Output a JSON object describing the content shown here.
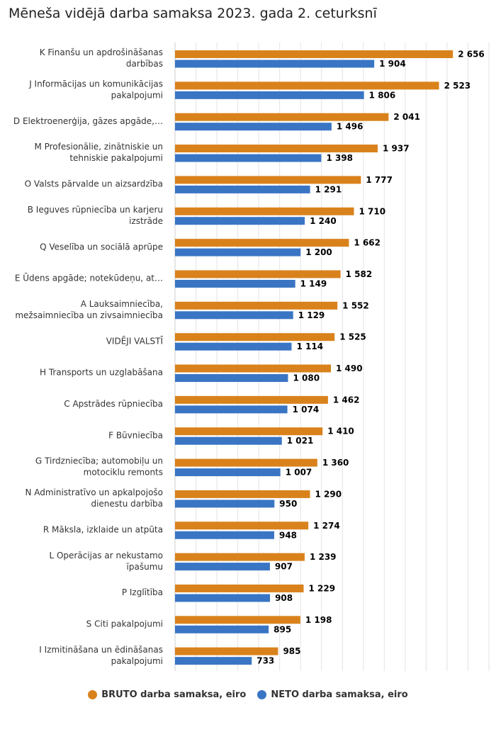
{
  "chart_data": {
    "type": "bar",
    "orientation": "horizontal",
    "title": "Mēneša vidējā darba samaksa 2023. gada 2. ceturksnī",
    "categories": [
      [
        "K Finanšu un apdrošināšanas",
        "darbības"
      ],
      [
        "J Informācijas un komunikācijas",
        "pakalpojumi"
      ],
      [
        "D Elektroenerģija, gāzes apgāde,…"
      ],
      [
        "M Profesionālie, zinātniskie un",
        "tehniskie pakalpojumi"
      ],
      [
        "O Valsts pārvalde un aizsardzība"
      ],
      [
        "B Ieguves rūpniecība un karjeru",
        "izstrāde"
      ],
      [
        "Q Veselība un sociālā aprūpe"
      ],
      [
        "E Ūdens apgāde; notekūdeņu, at…"
      ],
      [
        "A Lauksaimniecība,",
        "mežsaimniecība un zivsaimniecība"
      ],
      [
        "VIDĒJI VALSTĪ"
      ],
      [
        "H Transports un uzglabāšana"
      ],
      [
        "C Apstrādes rūpniecība"
      ],
      [
        "F Būvniecība"
      ],
      [
        "G Tirdzniecība; automobiļu un",
        "motociklu remonts"
      ],
      [
        "N Administratīvo un apkalpojošo",
        "dienestu darbība"
      ],
      [
        "R Māksla, izklaide un atpūta"
      ],
      [
        "L Operācijas ar nekustamo",
        "īpašumu"
      ],
      [
        "P Izglītība"
      ],
      [
        "S Citi pakalpojumi"
      ],
      [
        "I Izmitināšana un ēdināšanas",
        "pakalpojumi"
      ]
    ],
    "series": [
      {
        "name": "BRUTO darba samaksa, eiro",
        "color": "#D9821C",
        "values": [
          2656,
          2523,
          2041,
          1937,
          1777,
          1710,
          1662,
          1582,
          1552,
          1525,
          1490,
          1462,
          1410,
          1360,
          1290,
          1274,
          1239,
          1229,
          1198,
          985
        ],
        "labels": [
          "2 656",
          "2 523",
          "2 041",
          "1 937",
          "1 777",
          "1 710",
          "1 662",
          "1 582",
          "1 552",
          "1 525",
          "1 490",
          "1 462",
          "1 410",
          "1 360",
          "1 290",
          "1 274",
          "1 239",
          "1 229",
          "1 198",
          "985"
        ]
      },
      {
        "name": "NETO darba samaksa, eiro",
        "color": "#3A75C4",
        "values": [
          1904,
          1806,
          1496,
          1398,
          1291,
          1240,
          1200,
          1149,
          1129,
          1114,
          1080,
          1074,
          1021,
          1007,
          950,
          948,
          907,
          908,
          895,
          733
        ],
        "labels": [
          "1 904",
          "1 806",
          "1 496",
          "1 398",
          "1 291",
          "1 240",
          "1 200",
          "1 149",
          "1 129",
          "1 114",
          "1 080",
          "1 074",
          "1 021",
          "1 007",
          "950",
          "948",
          "907",
          "908",
          "895",
          "733"
        ]
      }
    ],
    "xlim": [
      0,
      3000
    ],
    "grid": true,
    "legend_position": "bottom"
  }
}
